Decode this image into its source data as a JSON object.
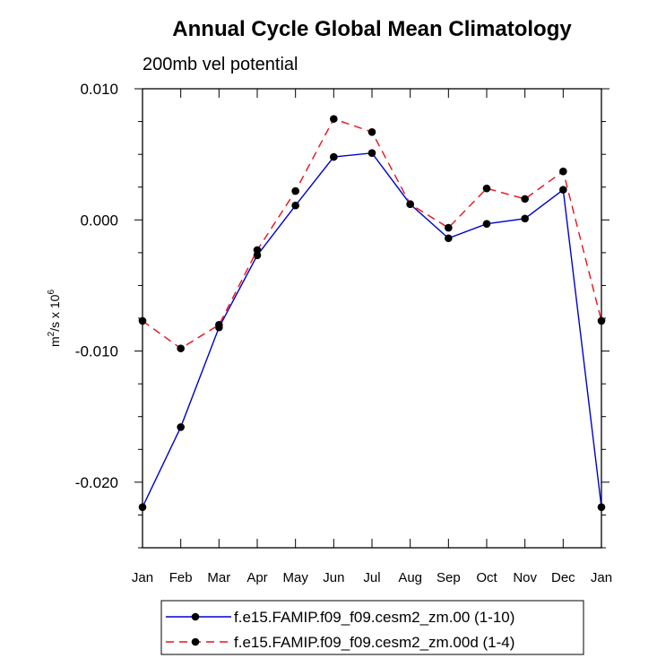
{
  "chart_data": {
    "type": "line",
    "title": "Annual Cycle Global Mean Climatology",
    "subtitle": "200mb vel potential",
    "ylabel": "m²/s x 10⁶",
    "ylabel_base": "m",
    "ylabel_sup1": "2",
    "ylabel_mid": "/s x 10",
    "ylabel_sup2": "6",
    "xlabel": "",
    "categories": [
      "Jan",
      "Feb",
      "Mar",
      "Apr",
      "May",
      "Jun",
      "Jul",
      "Aug",
      "Sep",
      "Oct",
      "Nov",
      "Dec",
      "Jan"
    ],
    "ylim": [
      -0.025,
      0.01
    ],
    "yticks": [
      -0.02,
      -0.01,
      0.0,
      0.01
    ],
    "ytick_labels": [
      "-0.020",
      "-0.010",
      "0.000",
      "0.010"
    ],
    "series": [
      {
        "name": "f.e15.FAMIP.f09_f09.cesm2_zm.00 (1-10)",
        "color": "#0000cc",
        "dash": "solid",
        "values": [
          -0.0219,
          -0.0158,
          -0.0082,
          -0.0027,
          0.0011,
          0.0048,
          0.0051,
          0.0012,
          -0.0014,
          -0.0003,
          0.0001,
          0.0023,
          -0.0219
        ]
      },
      {
        "name": "f.e15.FAMIP.f09_f09.cesm2_zm.00d (1-4)",
        "color": "#e8101a",
        "dash": "dashed",
        "values": [
          -0.0077,
          -0.0098,
          -0.008,
          -0.0023,
          0.0022,
          0.0077,
          0.0067,
          0.0012,
          -0.0006,
          0.0024,
          0.0016,
          0.0037,
          -0.0077
        ]
      }
    ]
  }
}
